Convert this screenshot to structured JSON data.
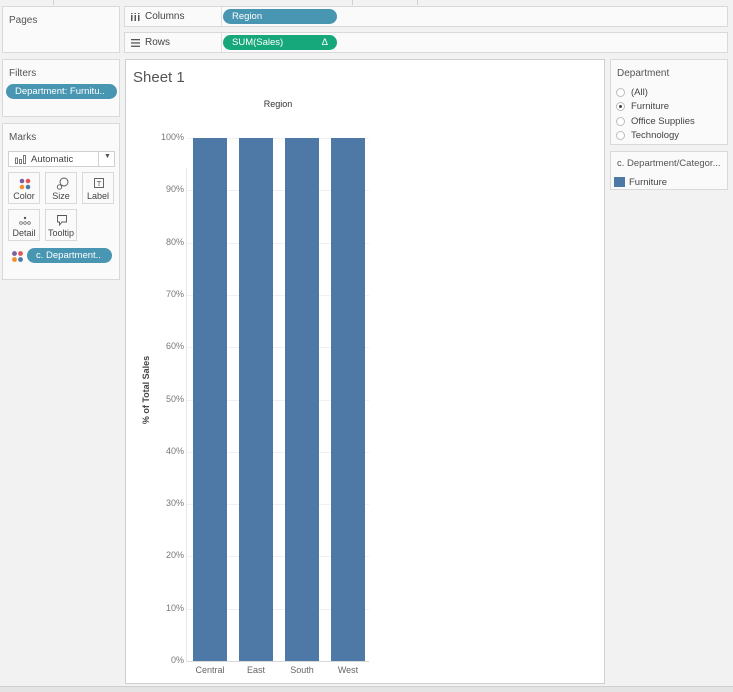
{
  "shelves": {
    "pages_label": "Pages",
    "columns_label": "Columns",
    "columns_pill": "Region",
    "rows_label": "Rows",
    "rows_pill": "SUM(Sales)",
    "rows_pill_icon": "Δ"
  },
  "filters": {
    "title": "Filters",
    "pill": "Department: Furnitu.."
  },
  "marks": {
    "title": "Marks",
    "mark_type": "Automatic",
    "buttons": [
      {
        "label": "Color",
        "icon": "color-dots-icon"
      },
      {
        "label": "Size",
        "icon": "size-icon"
      },
      {
        "label": "Label",
        "icon": "label-icon"
      },
      {
        "label": "Detail",
        "icon": "detail-icon"
      },
      {
        "label": "Tooltip",
        "icon": "tooltip-icon"
      }
    ],
    "color_pill": "c. Department.."
  },
  "sheet": {
    "title": "Sheet 1",
    "column_header": "Region",
    "y_axis_title": "% of Total Sales"
  },
  "department_filter": {
    "title": "Department",
    "options": [
      {
        "label": "(All)",
        "selected": false
      },
      {
        "label": "Furniture",
        "selected": true
      },
      {
        "label": "Office Supplies",
        "selected": false
      },
      {
        "label": "Technology",
        "selected": false
      }
    ]
  },
  "legend": {
    "title": "c. Department/Categor...",
    "items": [
      {
        "label": "Furniture",
        "color": "#4e79a7"
      }
    ]
  },
  "colors": {
    "bar": "#4e79a7",
    "pill_blue": "#4996b2",
    "pill_green": "#16a87a"
  },
  "chart_data": {
    "type": "bar",
    "title": "Sheet 1",
    "categories": [
      "Central",
      "East",
      "South",
      "West"
    ],
    "values": [
      100,
      100,
      100,
      100
    ],
    "xlabel": "Region",
    "ylabel": "% of Total Sales",
    "ylim": [
      0,
      100
    ],
    "yticks": [
      "0%",
      "10%",
      "20%",
      "30%",
      "40%",
      "50%",
      "60%",
      "70%",
      "80%",
      "90%",
      "100%"
    ],
    "grid": true,
    "legend": {
      "title": "c. Department/Categor...",
      "entries": [
        "Furniture"
      ],
      "position": "right"
    }
  }
}
